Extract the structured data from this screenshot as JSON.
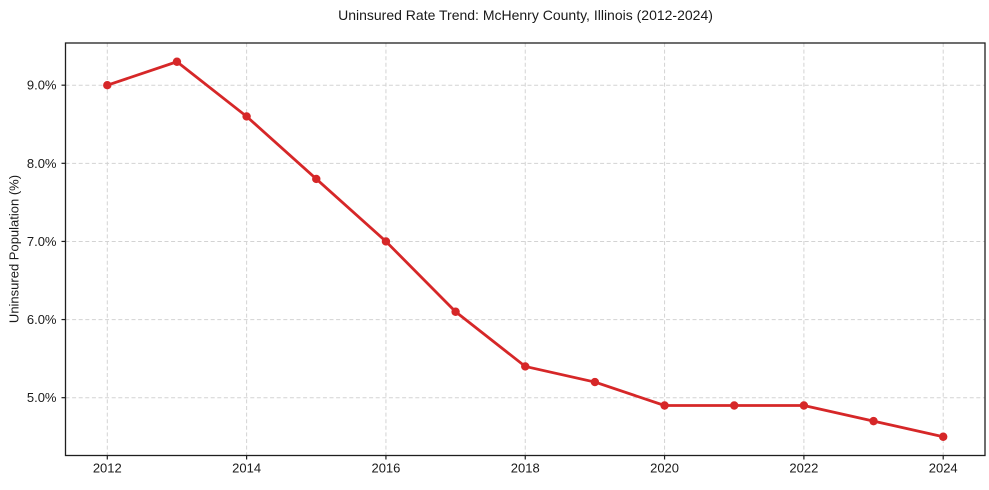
{
  "chart_data": {
    "type": "line",
    "title": "Uninsured Rate Trend: McHenry County, Illinois (2012-2024)",
    "xlabel": "",
    "ylabel": "Uninsured Population (%)",
    "x": [
      2012,
      2013,
      2014,
      2015,
      2016,
      2017,
      2018,
      2019,
      2020,
      2021,
      2022,
      2023,
      2024
    ],
    "values": [
      9.0,
      9.3,
      8.6,
      7.8,
      7.0,
      6.1,
      5.4,
      5.2,
      4.9,
      4.9,
      4.9,
      4.7,
      4.5
    ],
    "x_ticks": [
      2012,
      2014,
      2016,
      2018,
      2020,
      2022,
      2024
    ],
    "x_tick_labels": [
      "2012",
      "2014",
      "2016",
      "2018",
      "2020",
      "2022",
      "2024"
    ],
    "y_ticks": [
      5,
      6,
      7,
      8,
      9
    ],
    "y_tick_labels": [
      "5.0%",
      "6.0%",
      "7.0%",
      "8.0%",
      "9.0%"
    ],
    "xlim": [
      2011.4,
      2024.6
    ],
    "ylim": [
      4.26,
      9.54
    ],
    "grid": true,
    "legend": "none",
    "line_color": "#d62728",
    "marker_color": "#d62728",
    "grid_color": "#d3d3d3",
    "spine_color": "#1f1f1f",
    "text_color": "#1a1a1a",
    "background_color": "#ffffff"
  }
}
